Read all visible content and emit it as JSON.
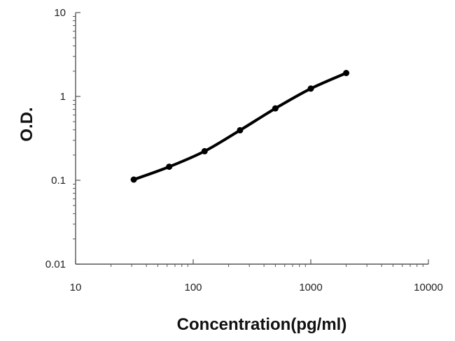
{
  "chart_data": {
    "type": "scatter",
    "title": "",
    "xlabel": "Concentration(pg/ml)",
    "ylabel": "O.D.",
    "x_scale": "log",
    "y_scale": "log",
    "xlim": [
      10,
      10000
    ],
    "ylim": [
      0.01,
      10
    ],
    "x_ticks": [
      "10",
      "100",
      "1000",
      "10000"
    ],
    "y_ticks": [
      "10",
      "1",
      "0.1",
      "0.01"
    ],
    "grid": false,
    "legend": "none",
    "series": [
      {
        "x": [
          31.25,
          62.5,
          125,
          250,
          500,
          1000,
          2000
        ],
        "y": [
          0.102,
          0.145,
          0.222,
          0.395,
          0.72,
          1.24,
          1.9
        ],
        "color": "#000000",
        "marker": "circle",
        "line": "smooth"
      }
    ]
  }
}
